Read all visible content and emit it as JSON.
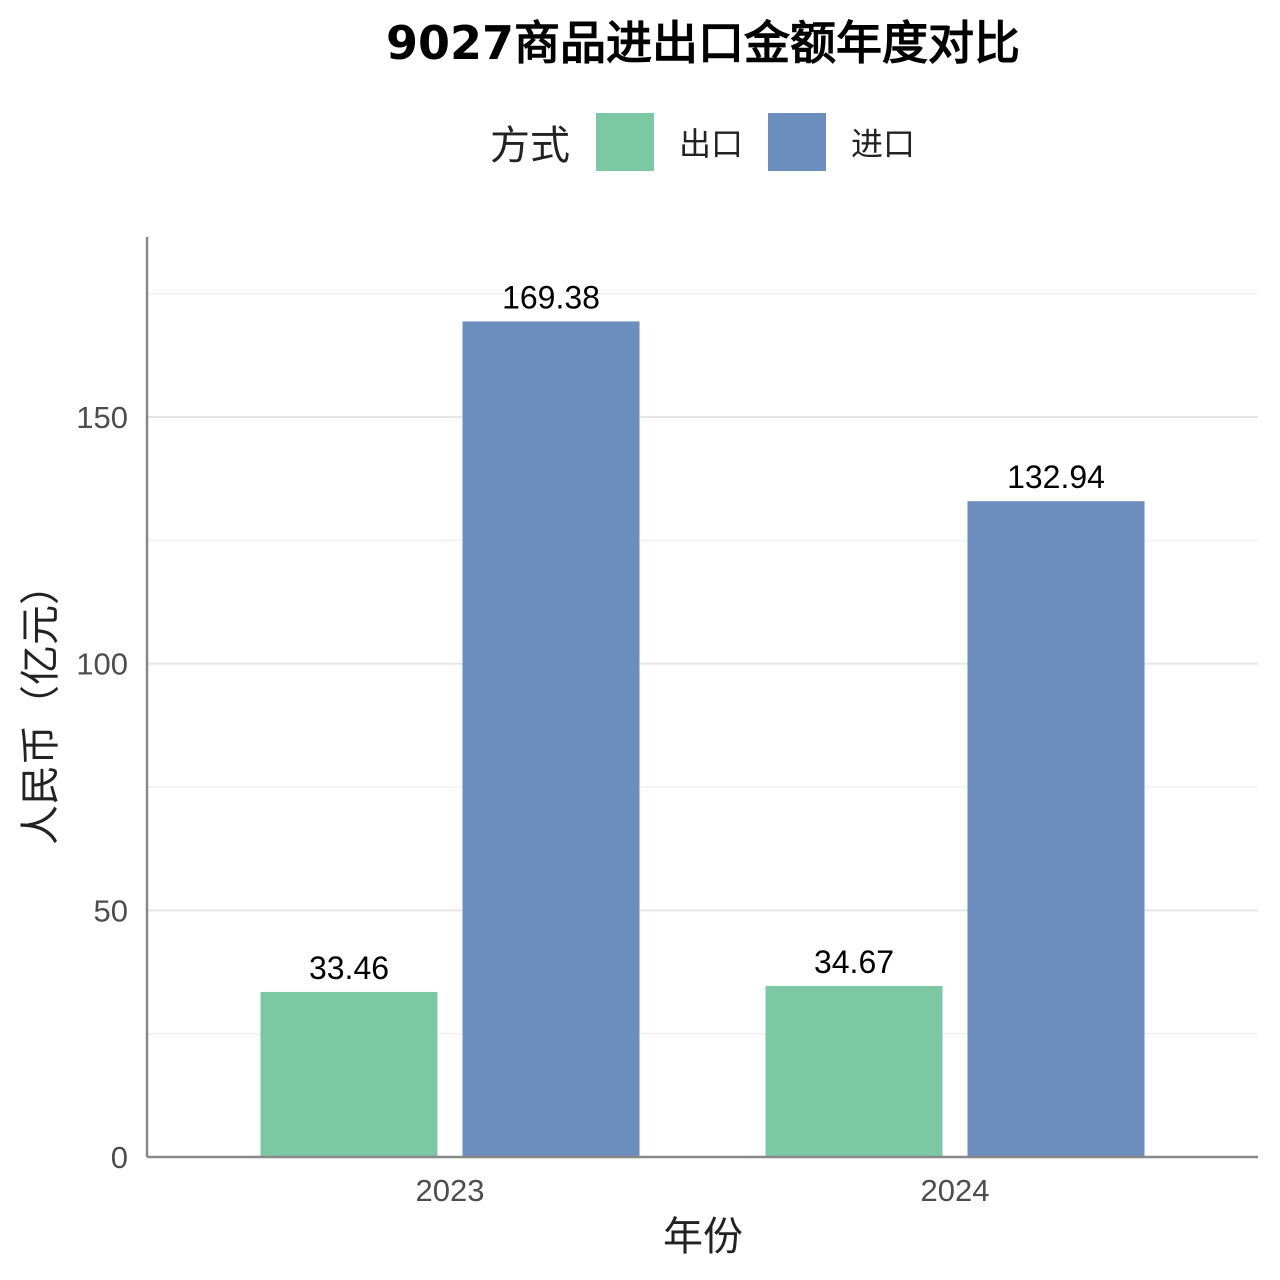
{
  "chart_data": {
    "type": "bar",
    "title": "9027商品进出口金额年度对比",
    "xlabel": "年份",
    "ylabel": "人民币（亿元）",
    "categories": [
      "2023",
      "2024"
    ],
    "legend": {
      "title": "方式",
      "position": "top"
    },
    "series": [
      {
        "name": "出口",
        "color": "#7dc8a4",
        "values": [
          33.46,
          34.67
        ],
        "labels": [
          "33.46",
          "34.67"
        ]
      },
      {
        "name": "进口",
        "color": "#6c8ebf",
        "values": [
          169.38,
          132.94
        ],
        "labels": [
          "169.38",
          "132.94"
        ]
      }
    ],
    "ylim": [
      0,
      186.5
    ],
    "yticks": [
      0,
      50,
      100,
      150
    ],
    "ytick_labels": [
      "0",
      "50",
      "100",
      "150"
    ],
    "grid": true
  }
}
